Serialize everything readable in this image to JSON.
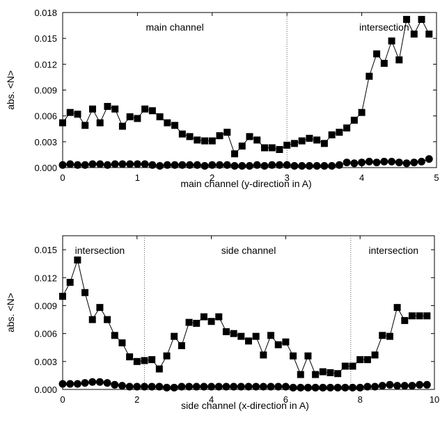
{
  "chart_data": [
    {
      "type": "line",
      "xlabel": "main channel (y-direction in A)",
      "ylabel": "abs. <N>",
      "xlim": [
        0,
        5
      ],
      "ylim": [
        0,
        0.018
      ],
      "xticks": [
        0,
        1,
        2,
        3,
        4,
        5
      ],
      "xtick_labels": [
        "0",
        "1",
        "2",
        "3",
        "4",
        "5"
      ],
      "yticks": [
        0,
        0.003,
        0.006,
        0.009,
        0.012,
        0.015,
        0.018
      ],
      "ytick_labels": [
        "0.000",
        "0.003",
        "0.006",
        "0.009",
        "0.012",
        "0.015",
        "0.018"
      ],
      "dividers": [
        3.0
      ],
      "region_labels": [
        {
          "text": "main channel",
          "x": 1.5
        },
        {
          "text": "intersection",
          "x": 4.3
        }
      ],
      "series": [
        {
          "marker": "square",
          "x": [
            0,
            0.1,
            0.2,
            0.3,
            0.4,
            0.5,
            0.6,
            0.7,
            0.8,
            0.9,
            1.0,
            1.1,
            1.2,
            1.3,
            1.4,
            1.5,
            1.6,
            1.7,
            1.8,
            1.9,
            2.0,
            2.1,
            2.2,
            2.3,
            2.4,
            2.5,
            2.6,
            2.7,
            2.8,
            2.9,
            3.0,
            3.1,
            3.2,
            3.3,
            3.4,
            3.5,
            3.6,
            3.7,
            3.8,
            3.9,
            4.0,
            4.1,
            4.2,
            4.3,
            4.4,
            4.5,
            4.6,
            4.7,
            4.8,
            4.9
          ],
          "values": [
            0.0052,
            0.0064,
            0.0062,
            0.0049,
            0.0068,
            0.0052,
            0.0071,
            0.0068,
            0.0048,
            0.0059,
            0.0057,
            0.0068,
            0.0066,
            0.0059,
            0.0052,
            0.0049,
            0.0039,
            0.0036,
            0.0032,
            0.0031,
            0.0031,
            0.0037,
            0.0041,
            0.0016,
            0.0025,
            0.0036,
            0.0032,
            0.0023,
            0.0023,
            0.0021,
            0.0026,
            0.0028,
            0.0031,
            0.0034,
            0.0032,
            0.0028,
            0.0038,
            0.0041,
            0.0046,
            0.0055,
            0.0064,
            0.0106,
            0.0132,
            0.0121,
            0.0147,
            0.0125,
            0.0172,
            0.0155,
            0.0172,
            0.0155
          ]
        },
        {
          "marker": "circle",
          "x": [
            0,
            0.1,
            0.2,
            0.3,
            0.4,
            0.5,
            0.6,
            0.7,
            0.8,
            0.9,
            1.0,
            1.1,
            1.2,
            1.3,
            1.4,
            1.5,
            1.6,
            1.7,
            1.8,
            1.9,
            2.0,
            2.1,
            2.2,
            2.3,
            2.4,
            2.5,
            2.6,
            2.7,
            2.8,
            2.9,
            3.0,
            3.1,
            3.2,
            3.3,
            3.4,
            3.5,
            3.6,
            3.7,
            3.8,
            3.9,
            4.0,
            4.1,
            4.2,
            4.3,
            4.4,
            4.5,
            4.6,
            4.7,
            4.8,
            4.9
          ],
          "values": [
            0.0003,
            0.0004,
            0.0003,
            0.0003,
            0.0004,
            0.0004,
            0.0003,
            0.0004,
            0.0004,
            0.0004,
            0.0004,
            0.0004,
            0.0003,
            0.0002,
            0.0003,
            0.0003,
            0.0003,
            0.0003,
            0.0003,
            0.0002,
            0.0003,
            0.0003,
            0.0003,
            0.0002,
            0.0002,
            0.0002,
            0.0003,
            0.0002,
            0.0003,
            0.0003,
            0.0003,
            0.0002,
            0.0002,
            0.0002,
            0.0002,
            0.0002,
            0.0002,
            0.0003,
            0.0006,
            0.0005,
            0.0006,
            0.0007,
            0.0006,
            0.0007,
            0.0007,
            0.0006,
            0.0005,
            0.0006,
            0.0007,
            0.001
          ]
        }
      ]
    },
    {
      "type": "line",
      "xlabel": "side channel (x-direction in A)",
      "ylabel": "abs. <N>",
      "xlim": [
        0,
        10
      ],
      "ylim": [
        0,
        0.0165
      ],
      "xticks": [
        0,
        2,
        4,
        6,
        8,
        10
      ],
      "xtick_labels": [
        "0",
        "2",
        "4",
        "6",
        "8",
        "10"
      ],
      "yticks": [
        0,
        0.003,
        0.006,
        0.009,
        0.012,
        0.015
      ],
      "ytick_labels": [
        "0.000",
        "0.003",
        "0.006",
        "0.009",
        "0.012",
        "0.015"
      ],
      "dividers": [
        2.2,
        7.75
      ],
      "region_labels": [
        {
          "text": "intersection",
          "x": 1.0
        },
        {
          "text": "side channel",
          "x": 5.0
        },
        {
          "text": "intersection",
          "x": 8.9
        }
      ],
      "series": [
        {
          "marker": "square",
          "x": [
            0,
            0.2,
            0.4,
            0.6,
            0.8,
            1.0,
            1.2,
            1.4,
            1.6,
            1.8,
            2.0,
            2.2,
            2.4,
            2.6,
            2.8,
            3.0,
            3.2,
            3.4,
            3.6,
            3.8,
            4.0,
            4.2,
            4.4,
            4.6,
            4.8,
            5.0,
            5.2,
            5.4,
            5.6,
            5.8,
            6.0,
            6.2,
            6.4,
            6.6,
            6.8,
            7.0,
            7.2,
            7.4,
            7.6,
            7.8,
            8.0,
            8.2,
            8.4,
            8.6,
            8.8,
            9.0,
            9.2,
            9.4,
            9.6,
            9.8
          ],
          "values": [
            0.01,
            0.0115,
            0.0139,
            0.0104,
            0.0075,
            0.0088,
            0.0075,
            0.0058,
            0.005,
            0.0035,
            0.003,
            0.0031,
            0.0032,
            0.0022,
            0.0036,
            0.0057,
            0.0047,
            0.0072,
            0.0071,
            0.0078,
            0.0073,
            0.0078,
            0.0062,
            0.006,
            0.0057,
            0.0052,
            0.0057,
            0.0037,
            0.0058,
            0.0048,
            0.0051,
            0.0036,
            0.0016,
            0.0036,
            0.0016,
            0.0019,
            0.0018,
            0.0017,
            0.0025,
            0.0025,
            0.0032,
            0.0032,
            0.0037,
            0.0058,
            0.0057,
            0.0088,
            0.0074,
            0.0079,
            0.0079,
            0.0079
          ]
        },
        {
          "marker": "circle",
          "x": [
            0,
            0.2,
            0.4,
            0.6,
            0.8,
            1.0,
            1.2,
            1.4,
            1.6,
            1.8,
            2.0,
            2.2,
            2.4,
            2.6,
            2.8,
            3.0,
            3.2,
            3.4,
            3.6,
            3.8,
            4.0,
            4.2,
            4.4,
            4.6,
            4.8,
            5.0,
            5.2,
            5.4,
            5.6,
            5.8,
            6.0,
            6.2,
            6.4,
            6.6,
            6.8,
            7.0,
            7.2,
            7.4,
            7.6,
            7.8,
            8.0,
            8.2,
            8.4,
            8.6,
            8.8,
            9.0,
            9.2,
            9.4,
            9.6,
            9.8
          ],
          "values": [
            0.0006,
            0.0006,
            0.0006,
            0.0007,
            0.0008,
            0.0008,
            0.0007,
            0.0005,
            0.0004,
            0.0003,
            0.0003,
            0.0003,
            0.0003,
            0.0003,
            0.0002,
            0.0002,
            0.0003,
            0.0003,
            0.0003,
            0.0003,
            0.0003,
            0.0003,
            0.0003,
            0.0003,
            0.0003,
            0.0003,
            0.0003,
            0.0003,
            0.0003,
            0.0003,
            0.0003,
            0.0002,
            0.0002,
            0.0002,
            0.0002,
            0.0002,
            0.0002,
            0.0002,
            0.0002,
            0.0002,
            0.0002,
            0.0003,
            0.0003,
            0.0004,
            0.0005,
            0.0004,
            0.0004,
            0.0004,
            0.0005,
            0.0005
          ]
        }
      ]
    }
  ]
}
